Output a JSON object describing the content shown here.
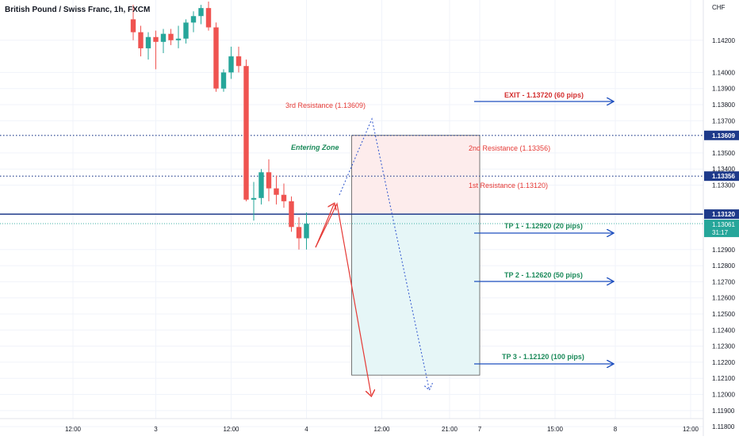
{
  "header": {
    "title": "British Pound / Swiss Franc, 1h, FXCM"
  },
  "colors": {
    "up": "#26a69a",
    "down": "#ef5350",
    "blue_line": "#1e3a8a",
    "arrow_blue": "#1e4fbf",
    "resistance_text": "#e53935",
    "tp_text": "#1b8a5a",
    "exit_text": "#d32f2f",
    "zone_upper_fill": "#fdecec",
    "zone_lower_fill": "#e6f6f7",
    "axis_text": "#131722",
    "grid": "#f0f3fa"
  },
  "chart_data": {
    "type": "candlestick",
    "title": "British Pound / Swiss Franc, 1h, FXCM",
    "currency_label": "CHF",
    "ylim": [
      1.1185,
      1.1445
    ],
    "y_ticks": [
      "1.14200",
      "1.14000",
      "1.13900",
      "1.13800",
      "1.13700",
      "1.13500",
      "1.13400",
      "1.13300",
      "1.12900",
      "1.12800",
      "1.12700",
      "1.12600",
      "1.12500",
      "1.12400",
      "1.12300",
      "1.12200",
      "1.12100",
      "1.12000",
      "1.11900",
      "1.11800"
    ],
    "x_ticks": [
      {
        "label": "12:00",
        "index": -8
      },
      {
        "label": "3",
        "index": 3
      },
      {
        "label": "12:00",
        "index": 13
      },
      {
        "label": "4",
        "index": 23
      },
      {
        "label": "12:00",
        "index": 33
      },
      {
        "label": "21:00",
        "index": 42
      },
      {
        "label": "7",
        "index": 46
      },
      {
        "label": "15:00",
        "index": 56
      },
      {
        "label": "8",
        "index": 64
      },
      {
        "label": "12:00",
        "index": 74
      }
    ],
    "candles": [
      {
        "o": 1.1433,
        "h": 1.1442,
        "l": 1.142,
        "c": 1.1425
      },
      {
        "o": 1.1425,
        "h": 1.1429,
        "l": 1.141,
        "c": 1.1415
      },
      {
        "o": 1.1415,
        "h": 1.1425,
        "l": 1.1408,
        "c": 1.1422
      },
      {
        "o": 1.1422,
        "h": 1.1426,
        "l": 1.1402,
        "c": 1.1419
      },
      {
        "o": 1.1419,
        "h": 1.1427,
        "l": 1.1412,
        "c": 1.1424
      },
      {
        "o": 1.1424,
        "h": 1.1427,
        "l": 1.1417,
        "c": 1.142
      },
      {
        "o": 1.142,
        "h": 1.1429,
        "l": 1.1415,
        "c": 1.1421
      },
      {
        "o": 1.1421,
        "h": 1.1433,
        "l": 1.1418,
        "c": 1.1431
      },
      {
        "o": 1.1431,
        "h": 1.1438,
        "l": 1.1425,
        "c": 1.1435
      },
      {
        "o": 1.1435,
        "h": 1.1442,
        "l": 1.143,
        "c": 1.144
      },
      {
        "o": 1.144,
        "h": 1.1444,
        "l": 1.1426,
        "c": 1.1428
      },
      {
        "o": 1.1428,
        "h": 1.1431,
        "l": 1.1388,
        "c": 1.139
      },
      {
        "o": 1.139,
        "h": 1.1402,
        "l": 1.1388,
        "c": 1.14
      },
      {
        "o": 1.14,
        "h": 1.1416,
        "l": 1.1396,
        "c": 1.141
      },
      {
        "o": 1.141,
        "h": 1.1416,
        "l": 1.14,
        "c": 1.1404
      },
      {
        "o": 1.1404,
        "h": 1.1408,
        "l": 1.132,
        "c": 1.1321
      },
      {
        "o": 1.1321,
        "h": 1.1332,
        "l": 1.1308,
        "c": 1.1322
      },
      {
        "o": 1.1322,
        "h": 1.134,
        "l": 1.1318,
        "c": 1.1338
      },
      {
        "o": 1.1338,
        "h": 1.1346,
        "l": 1.132,
        "c": 1.1328
      },
      {
        "o": 1.1328,
        "h": 1.1336,
        "l": 1.1318,
        "c": 1.1324
      },
      {
        "o": 1.1324,
        "h": 1.1331,
        "l": 1.1316,
        "c": 1.132
      },
      {
        "o": 1.132,
        "h": 1.1323,
        "l": 1.1301,
        "c": 1.1304
      },
      {
        "o": 1.1304,
        "h": 1.131,
        "l": 1.129,
        "c": 1.1297
      },
      {
        "o": 1.1297,
        "h": 1.1313,
        "l": 1.129,
        "c": 1.1306
      }
    ],
    "candle_start_x": 168,
    "horizontal_levels": [
      {
        "value": 1.13609,
        "label": "1.13609",
        "style": "dotted"
      },
      {
        "value": 1.13356,
        "label": "1.13356",
        "style": "dotted"
      },
      {
        "value": 1.1312,
        "label": "1.13120",
        "style": "solid"
      },
      {
        "value": 1.13061,
        "label": "1.13061",
        "style": "dotted-thin",
        "countdown": "31:17"
      }
    ],
    "zones": [
      {
        "name": "resistance-zone",
        "from_index": 29,
        "to_index": 46,
        "y_top": 1.13609,
        "y_bottom": 1.1312
      },
      {
        "name": "target-zone",
        "from_index": 29,
        "to_index": 46,
        "y_top": 1.1312,
        "y_bottom": 1.1212
      }
    ],
    "annotations": {
      "entering_zone": "Entering Zone",
      "resistance_1": "1st Resistance (1.13120)",
      "resistance_2": "2nd Resistance (1.13356)",
      "resistance_3": "3rd Resistance (1.13609)",
      "exit": "EXIT - 1.13720 (60 pips)",
      "tp1": "TP 1 - 1.12920 (20 pips)",
      "tp2": "TP 2 - 1.12620 (50 pips)",
      "tp3": "TP 3 - 1.12120 (100 pips)"
    }
  }
}
